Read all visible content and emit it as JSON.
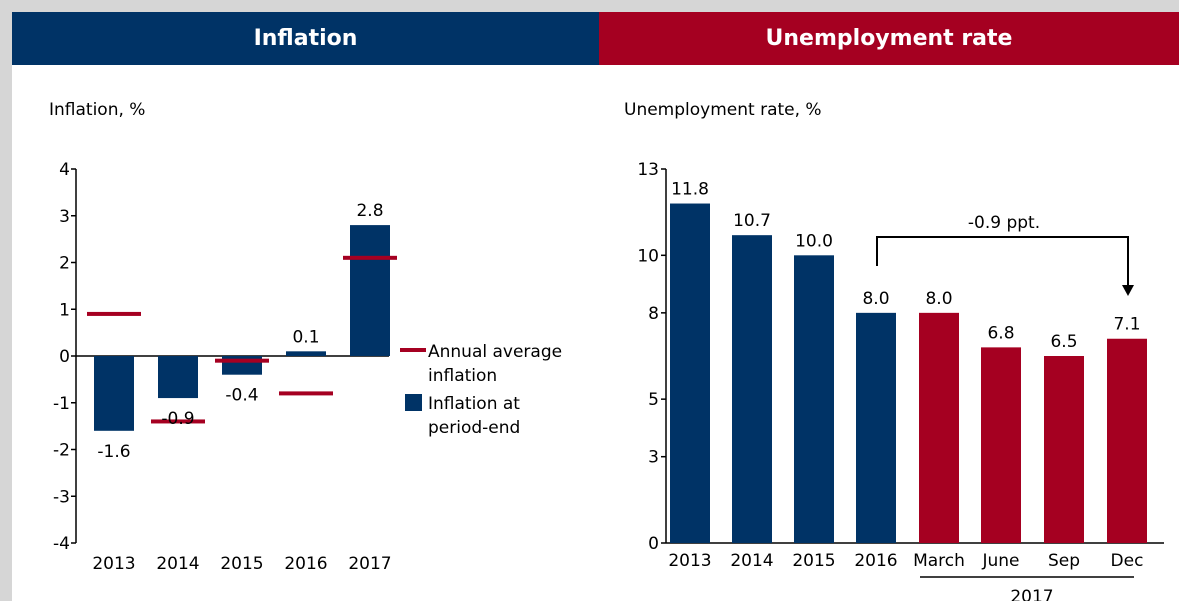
{
  "headers": {
    "left": "Inflation",
    "right": "Unemployment rate"
  },
  "colors": {
    "navy": "#003366",
    "crimson": "#a50021"
  },
  "chart_data": [
    {
      "type": "bar",
      "title": "Inflation, %",
      "categories": [
        "2013",
        "2014",
        "2015",
        "2016",
        "2017"
      ],
      "ylim": [
        -4,
        4
      ],
      "yticks": [
        -4,
        -3,
        -2,
        -1,
        0,
        1,
        2,
        3,
        4
      ],
      "series": [
        {
          "name": "Inflation at period-end",
          "values": [
            -1.6,
            -0.9,
            -0.4,
            0.1,
            2.8
          ],
          "labels": [
            "-1.6",
            "-0.9",
            "-0.4",
            "0.1",
            "2.8"
          ],
          "color": "#003366"
        },
        {
          "name": "Annual average inflation",
          "marker": "dash",
          "values": [
            0.9,
            -1.4,
            -0.1,
            -0.8,
            2.1
          ],
          "color": "#a50021"
        }
      ],
      "legend": {
        "position": "right",
        "items": [
          {
            "line1": "Annual average",
            "line2": "inflation"
          },
          {
            "line1": "Inflation at",
            "line2": "period-end"
          }
        ]
      }
    },
    {
      "type": "bar",
      "title": "Unemployment rate, %",
      "categories": [
        "2013",
        "2014",
        "2015",
        "2016",
        "March",
        "June",
        "Sep",
        "Dec"
      ],
      "group_label": "2017",
      "ylim": [
        0,
        13
      ],
      "yticks": [
        0,
        3,
        5,
        8,
        10,
        13
      ],
      "values": [
        11.8,
        10.7,
        10.0,
        8.0,
        8.0,
        6.8,
        6.5,
        7.1
      ],
      "labels": [
        "11.8",
        "10.7",
        "10.0",
        "8.0",
        "8.0",
        "6.8",
        "6.5",
        "7.1"
      ],
      "bar_colors": [
        "#003366",
        "#003366",
        "#003366",
        "#003366",
        "#a50021",
        "#a50021",
        "#a50021",
        "#a50021"
      ],
      "annotation": "-0.9 ppt."
    }
  ]
}
